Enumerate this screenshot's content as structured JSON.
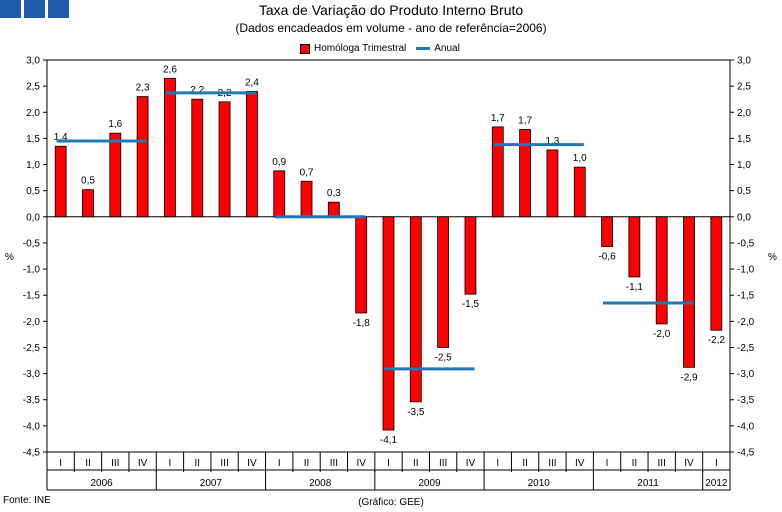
{
  "title": "Taxa de Variação do Produto Interno Bruto",
  "subtitle": "(Dados encadeados em volume - ano de referência=2006)",
  "source": "Fonte: INE",
  "credit": "(Gráfico: GEE)",
  "colors": {
    "bar": "#ff0000",
    "line": "#1f77b4",
    "logo": "#1f5ba8"
  },
  "chart_data": {
    "type": "bar",
    "title": "Taxa de Variação do Produto Interno Bruto",
    "subtitle": "(Dados encadeados em volume - ano de referência=2006)",
    "ylabel": "%",
    "ylabel_right": "%",
    "ylim": [
      -4.5,
      3.0
    ],
    "ytick_step": 0.5,
    "legend": {
      "position": "top-center",
      "entries": [
        "Homóloga Trimestral",
        "Anual"
      ]
    },
    "quarter_labels": [
      "I",
      "II",
      "III",
      "IV",
      "I",
      "II",
      "III",
      "IV",
      "I",
      "II",
      "III",
      "IV",
      "I",
      "II",
      "III",
      "IV",
      "I",
      "II",
      "III",
      "IV",
      "I",
      "II",
      "III",
      "IV",
      "I"
    ],
    "years": [
      {
        "label": "2006",
        "quarters": 4
      },
      {
        "label": "2007",
        "quarters": 4
      },
      {
        "label": "2008",
        "quarters": 4
      },
      {
        "label": "2009",
        "quarters": 4
      },
      {
        "label": "2010",
        "quarters": 4
      },
      {
        "label": "2011",
        "quarters": 4
      },
      {
        "label": "2012",
        "quarters": 1
      }
    ],
    "series": [
      {
        "name": "Homóloga Trimestral",
        "kind": "bar",
        "values": [
          1.35,
          0.52,
          1.6,
          2.3,
          2.65,
          2.25,
          2.2,
          2.4,
          0.88,
          0.68,
          0.28,
          -1.84,
          -4.08,
          -3.54,
          -2.5,
          -1.48,
          1.72,
          1.67,
          1.28,
          0.95,
          -0.57,
          -1.15,
          -2.05,
          -2.88,
          -2.17
        ],
        "labels": [
          "1,4",
          "0,5",
          "1,6",
          "2,3",
          "2,6",
          "2,2",
          "2,2",
          "2,4",
          "0,9",
          "0,7",
          "0,3",
          "-1,8",
          "-4,1",
          "-3,5",
          "-2,5",
          "-1,5",
          "1,7",
          "1,7",
          "1,3",
          "1,0",
          "-0,6",
          "-1,1",
          "-2,0",
          "-2,9",
          "-2,2"
        ]
      },
      {
        "name": "Anual",
        "kind": "step",
        "values": [
          {
            "year": "2006",
            "value": 1.45
          },
          {
            "year": "2007",
            "value": 2.37
          },
          {
            "year": "2008",
            "value": 0.0
          },
          {
            "year": "2009",
            "value": -2.91
          },
          {
            "year": "2010",
            "value": 1.38
          },
          {
            "year": "2011",
            "value": -1.65
          }
        ]
      }
    ]
  }
}
